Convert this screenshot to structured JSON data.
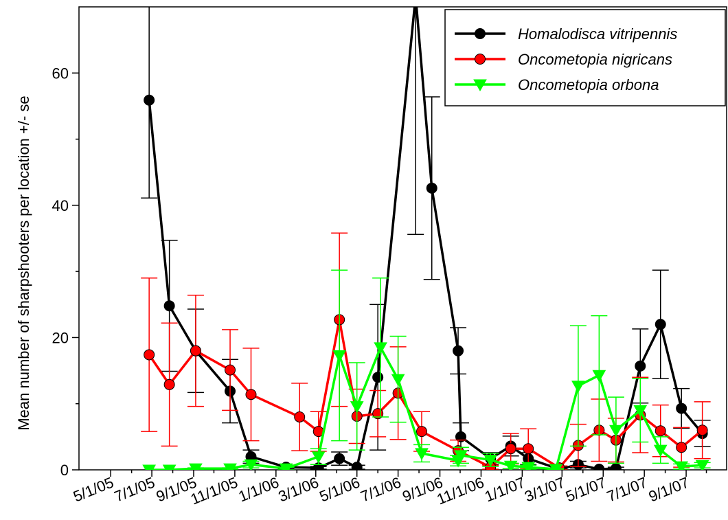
{
  "chart_data": {
    "type": "line",
    "title": "",
    "xlabel": "",
    "ylabel": "Mean number of sharpshooters per location +/- se",
    "xlim": [
      "2005-03-15",
      "2007-10-31"
    ],
    "ylim": [
      0,
      70
    ],
    "x_tick_labels": [
      "5/1/05",
      "7/1/05",
      "9/1/05",
      "11/1/05",
      "1/1/06",
      "3/1/06",
      "5/1/06",
      "7/1/06",
      "9/1/06",
      "11/1/06",
      "1/1/07",
      "3/1/07",
      "5/1/07",
      "7/1/07",
      "9/1/07"
    ],
    "x_ticks": [
      "2005-05-01",
      "2005-07-01",
      "2005-09-01",
      "2005-11-01",
      "2006-01-01",
      "2006-03-01",
      "2006-05-01",
      "2006-07-01",
      "2006-09-01",
      "2006-11-01",
      "2007-01-01",
      "2007-03-01",
      "2007-05-01",
      "2007-07-01",
      "2007-09-01"
    ],
    "y_ticks": [
      0,
      20,
      40,
      60
    ],
    "grid": false,
    "legend_position": "top-right",
    "series": [
      {
        "name": "Homalodisca vitripennis",
        "color": "#000000",
        "marker": "circle",
        "points": [
          {
            "x": "2005-06-27",
            "y": 55.9,
            "se": 14.8
          },
          {
            "x": "2005-07-27",
            "y": 24.8,
            "se": 9.9
          },
          {
            "x": "2005-09-04",
            "y": 18.0,
            "se": 6.3
          },
          {
            "x": "2005-10-25",
            "y": 11.9,
            "se": 4.8
          },
          {
            "x": "2005-11-25",
            "y": 2.0,
            "se": 1.0
          },
          {
            "x": "2006-01-16",
            "y": 0.4,
            "se": 0.3
          },
          {
            "x": "2006-03-05",
            "y": 0.3,
            "se": 0.2
          },
          {
            "x": "2006-04-05",
            "y": 1.7,
            "se": 1.0
          },
          {
            "x": "2006-05-01",
            "y": 0.4,
            "se": 0.3
          },
          {
            "x": "2006-06-01",
            "y": 14.0,
            "se": 11.0
          },
          {
            "x": "2006-07-27",
            "y": 71.6,
            "se": 36.0
          },
          {
            "x": "2006-08-20",
            "y": 42.6,
            "se": 13.8
          },
          {
            "x": "2006-09-28",
            "y": 18.0,
            "se": 3.5
          },
          {
            "x": "2006-10-02",
            "y": 5.0,
            "se": 2.1
          },
          {
            "x": "2006-11-15",
            "y": 1.7,
            "se": 0.9
          },
          {
            "x": "2006-12-15",
            "y": 3.6,
            "se": 1.5
          },
          {
            "x": "2007-01-10",
            "y": 1.7,
            "se": 0.9
          },
          {
            "x": "2007-02-25",
            "y": 0.1,
            "se": 0.1
          },
          {
            "x": "2007-03-25",
            "y": 0.8,
            "se": 0.5
          },
          {
            "x": "2007-04-25",
            "y": 0.1,
            "se": 0.1
          },
          {
            "x": "2007-05-20",
            "y": 0.2,
            "se": 0.2
          },
          {
            "x": "2007-06-25",
            "y": 15.7,
            "se": 5.6
          },
          {
            "x": "2007-07-25",
            "y": 22.0,
            "se": 8.2
          },
          {
            "x": "2007-08-25",
            "y": 9.3,
            "se": 3.0
          },
          {
            "x": "2007-09-25",
            "y": 5.5,
            "se": 2.0
          }
        ]
      },
      {
        "name": "Oncometopia nigricans",
        "color": "#ff0000",
        "marker": "circle",
        "points": [
          {
            "x": "2005-06-27",
            "y": 17.4,
            "se": 11.6
          },
          {
            "x": "2005-07-27",
            "y": 12.9,
            "se": 9.3
          },
          {
            "x": "2005-09-04",
            "y": 18.0,
            "se": 8.4
          },
          {
            "x": "2005-10-25",
            "y": 15.1,
            "se": 6.1
          },
          {
            "x": "2005-11-25",
            "y": 11.4,
            "se": 7.0
          },
          {
            "x": "2006-02-05",
            "y": 8.0,
            "se": 5.1
          },
          {
            "x": "2006-03-05",
            "y": 5.8,
            "se": 3.0
          },
          {
            "x": "2006-04-05",
            "y": 22.7,
            "se": 13.1
          },
          {
            "x": "2006-05-01",
            "y": 8.1,
            "se": 4.1
          },
          {
            "x": "2006-06-01",
            "y": 8.5,
            "se": 3.5
          },
          {
            "x": "2006-07-01",
            "y": 11.6,
            "se": 7.0
          },
          {
            "x": "2006-08-05",
            "y": 5.8,
            "se": 3.0
          },
          {
            "x": "2006-09-28",
            "y": 2.9,
            "se": 1.6
          },
          {
            "x": "2006-11-15",
            "y": 0.4,
            "se": 0.3
          },
          {
            "x": "2006-12-15",
            "y": 3.2,
            "se": 2.3
          },
          {
            "x": "2007-01-10",
            "y": 3.2,
            "se": 3.0
          },
          {
            "x": "2007-02-25",
            "y": 0.3,
            "se": 0.3
          },
          {
            "x": "2007-03-25",
            "y": 3.7,
            "se": 3.2
          },
          {
            "x": "2007-04-25",
            "y": 6.0,
            "se": 4.7
          },
          {
            "x": "2007-05-20",
            "y": 4.5,
            "se": 3.3
          },
          {
            "x": "2007-06-25",
            "y": 8.3,
            "se": 5.7
          },
          {
            "x": "2007-07-25",
            "y": 5.9,
            "se": 3.9
          },
          {
            "x": "2007-08-25",
            "y": 3.4,
            "se": 3.0
          },
          {
            "x": "2007-09-25",
            "y": 6.0,
            "se": 4.3
          }
        ]
      },
      {
        "name": "Oncometopia orbona",
        "color": "#00ff00",
        "marker": "triangle-down",
        "points": [
          {
            "x": "2005-06-27",
            "y": 0.0,
            "se": 0.0
          },
          {
            "x": "2005-07-27",
            "y": 0.0,
            "se": 0.0
          },
          {
            "x": "2005-09-04",
            "y": 0.2,
            "se": 0.1
          },
          {
            "x": "2005-10-25",
            "y": 0.2,
            "se": 0.1
          },
          {
            "x": "2005-11-25",
            "y": 0.8,
            "se": 0.5
          },
          {
            "x": "2006-01-16",
            "y": 0.2,
            "se": 0.2
          },
          {
            "x": "2006-03-05",
            "y": 2.0,
            "se": 1.2
          },
          {
            "x": "2006-04-05",
            "y": 17.3,
            "se": 12.9
          },
          {
            "x": "2006-05-01",
            "y": 9.6,
            "se": 6.6
          },
          {
            "x": "2006-06-05",
            "y": 18.5,
            "se": 10.5
          },
          {
            "x": "2006-07-01",
            "y": 13.7,
            "se": 6.5
          },
          {
            "x": "2006-08-05",
            "y": 2.5,
            "se": 1.3
          },
          {
            "x": "2006-09-28",
            "y": 1.4,
            "se": 0.8
          },
          {
            "x": "2006-10-02",
            "y": 2.2,
            "se": 1.2
          },
          {
            "x": "2006-11-15",
            "y": 1.5,
            "se": 1.0
          },
          {
            "x": "2006-12-15",
            "y": 0.6,
            "se": 0.4
          },
          {
            "x": "2007-01-10",
            "y": 0.4,
            "se": 0.3
          },
          {
            "x": "2007-02-20",
            "y": 0.1,
            "se": 0.1
          },
          {
            "x": "2007-03-25",
            "y": 12.7,
            "se": 9.1
          },
          {
            "x": "2007-04-25",
            "y": 14.3,
            "se": 9.0
          },
          {
            "x": "2007-05-20",
            "y": 6.0,
            "se": 5.0
          },
          {
            "x": "2007-06-25",
            "y": 9.0,
            "se": 4.8
          },
          {
            "x": "2007-07-25",
            "y": 3.0,
            "se": 2.0
          },
          {
            "x": "2007-08-25",
            "y": 0.5,
            "se": 0.4
          },
          {
            "x": "2007-09-25",
            "y": 0.7,
            "se": 0.4
          }
        ]
      }
    ]
  }
}
